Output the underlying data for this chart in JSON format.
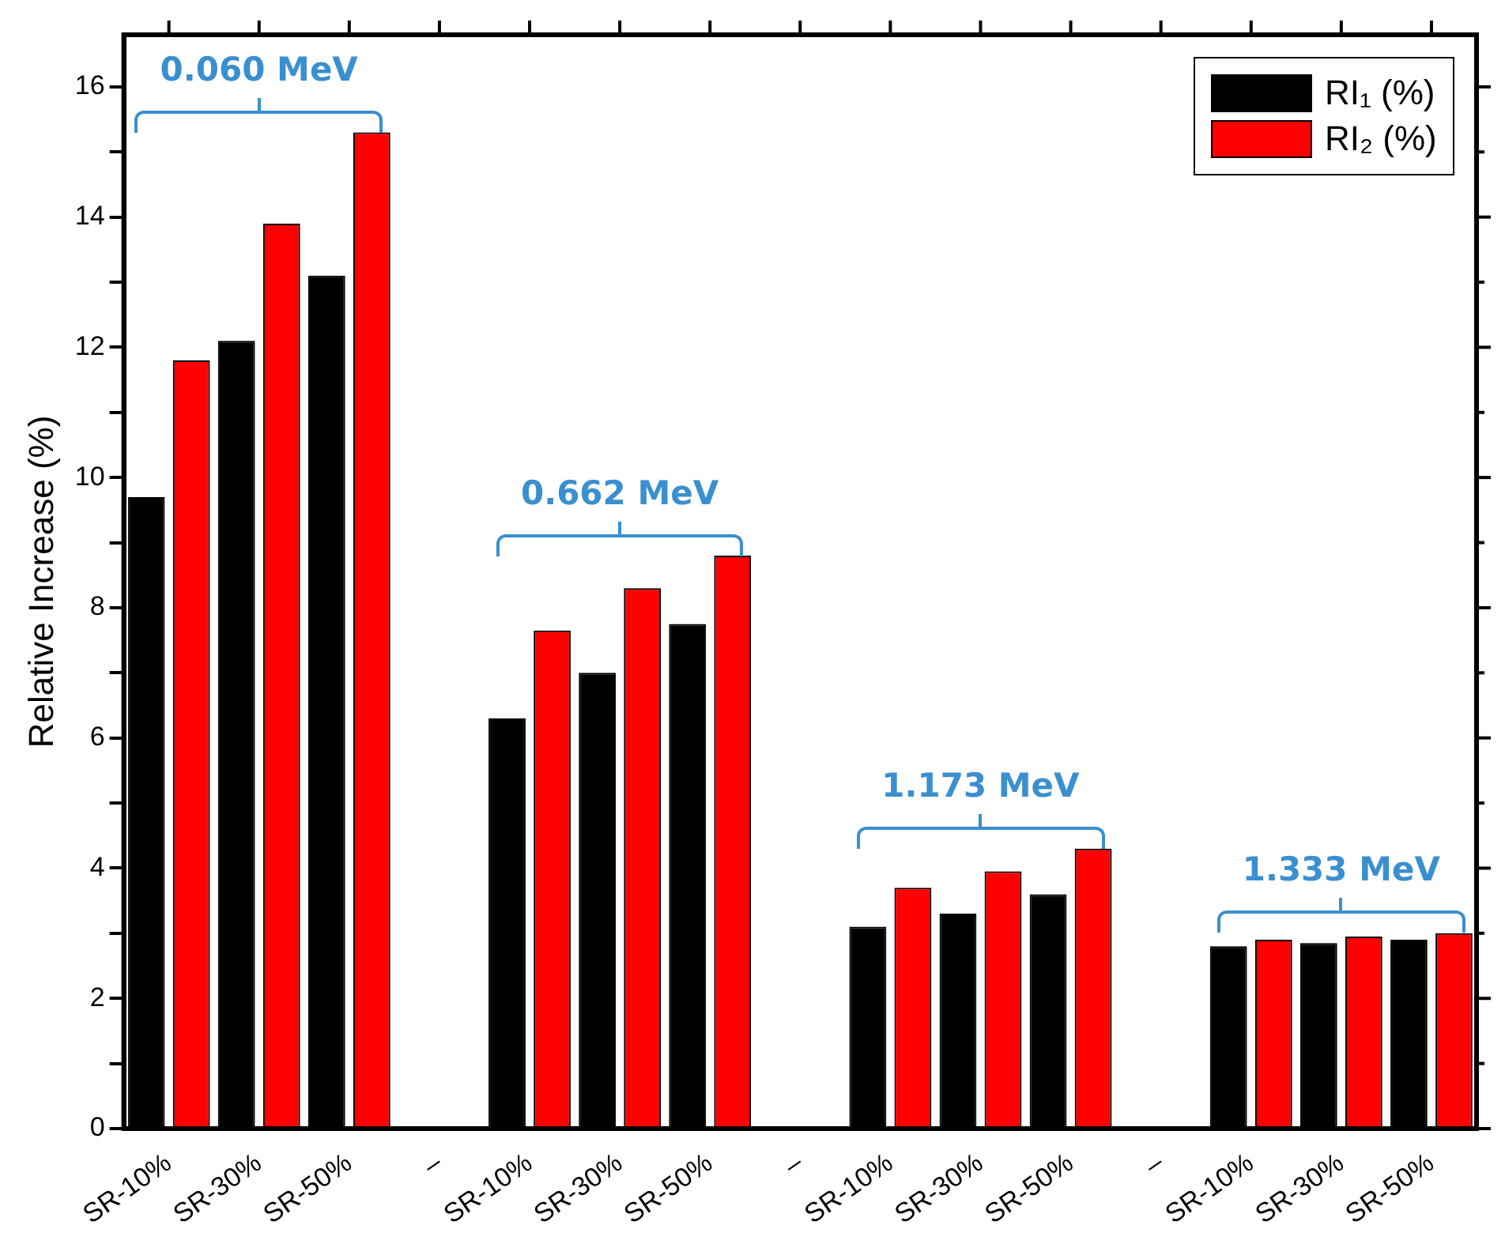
{
  "chart_data": {
    "type": "bar",
    "ylabel": "Relative Increase (%)",
    "categories": [
      "SR-10%",
      "SR-30%",
      "SR-50%",
      "–",
      "SR-10%",
      "SR-30%",
      "SR-50%",
      "–",
      "SR-10%",
      "SR-30%",
      "SR-50%",
      "–",
      "SR-10%",
      "SR-30%",
      "SR-50%"
    ],
    "series": [
      {
        "name": "RI₁ (%)",
        "color": "#000000",
        "values": [
          9.7,
          12.1,
          13.1,
          null,
          6.3,
          7.0,
          7.75,
          null,
          3.1,
          3.3,
          3.6,
          null,
          2.8,
          2.85,
          2.9
        ]
      },
      {
        "name": "RI₂ (%)",
        "color": "#ff0000",
        "values": [
          11.8,
          13.9,
          15.3,
          null,
          7.65,
          8.3,
          8.8,
          null,
          3.7,
          3.95,
          4.3,
          null,
          2.9,
          2.95,
          3.0
        ]
      }
    ],
    "ylim": [
      0,
      16.8
    ],
    "yticks": [
      0,
      {
        "value": 1,
        "label": null
      },
      2,
      {
        "value": 3,
        "label": null
      },
      4,
      {
        "value": 5,
        "label": null
      },
      6,
      {
        "value": 7,
        "label": null
      },
      8,
      {
        "value": 9,
        "label": null
      },
      10,
      {
        "value": 11,
        "label": null
      },
      12,
      {
        "value": 13,
        "label": null
      },
      14,
      {
        "value": 15,
        "label": null
      },
      16
    ],
    "annotations": [
      "0.060 MeV",
      "0.662 MeV",
      "1.173 MeV",
      "1.333 MeV"
    ],
    "grid": false,
    "legend": "top right"
  }
}
